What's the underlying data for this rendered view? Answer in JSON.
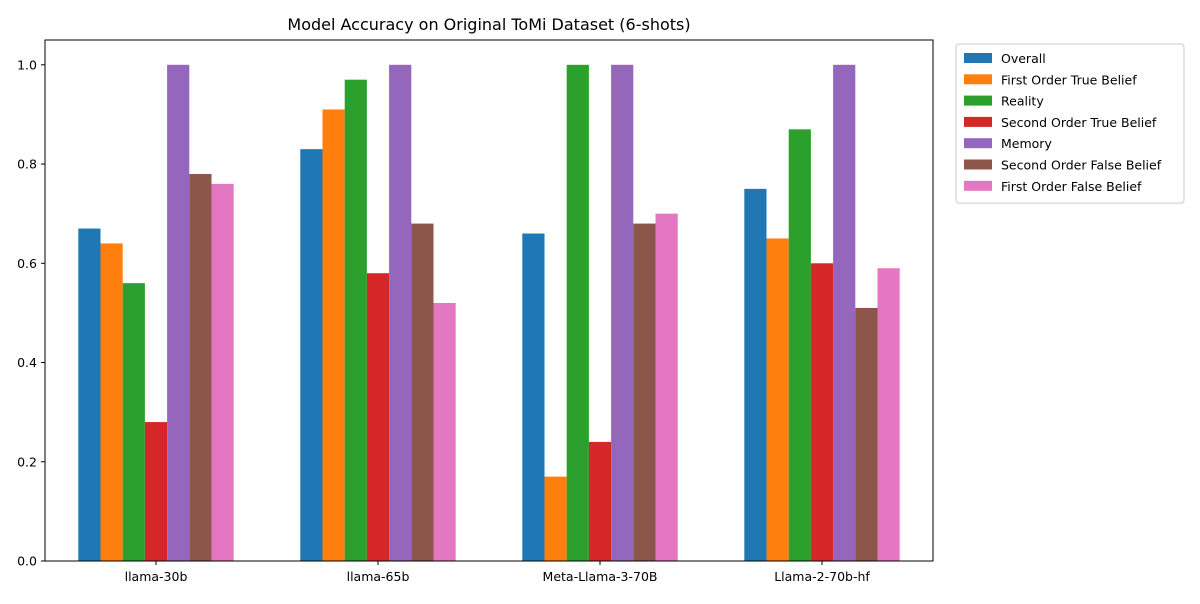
{
  "chart_data": {
    "type": "bar",
    "title": "Model Accuracy on Original ToMi Dataset (6-shots)",
    "xlabel": "",
    "ylabel": "",
    "ylim": [
      0,
      1.05
    ],
    "yticks": [
      "0.0",
      "0.2",
      "0.4",
      "0.6",
      "0.8",
      "1.0"
    ],
    "grid": false,
    "legend_position": "outside-top-right",
    "categories": [
      "llama-30b",
      "llama-65b",
      "Meta-Llama-3-70B",
      "Llama-2-70b-hf"
    ],
    "series": [
      {
        "name": "Overall",
        "color": "#1f77b4",
        "values": [
          0.67,
          0.83,
          0.66,
          0.75
        ]
      },
      {
        "name": "First Order True Belief",
        "color": "#ff7f0e",
        "values": [
          0.64,
          0.91,
          0.17,
          0.65
        ]
      },
      {
        "name": "Reality",
        "color": "#2ca02c",
        "values": [
          0.56,
          0.97,
          1.0,
          0.87
        ]
      },
      {
        "name": "Second Order True Belief",
        "color": "#d62728",
        "values": [
          0.28,
          0.58,
          0.24,
          0.6
        ]
      },
      {
        "name": "Memory",
        "color": "#9467bd",
        "values": [
          1.0,
          1.0,
          1.0,
          1.0
        ]
      },
      {
        "name": "Second Order False Belief",
        "color": "#8c564b",
        "values": [
          0.78,
          0.68,
          0.68,
          0.51
        ]
      },
      {
        "name": "First Order False Belief",
        "color": "#e377c2",
        "values": [
          0.76,
          0.52,
          0.7,
          0.59
        ]
      }
    ]
  }
}
